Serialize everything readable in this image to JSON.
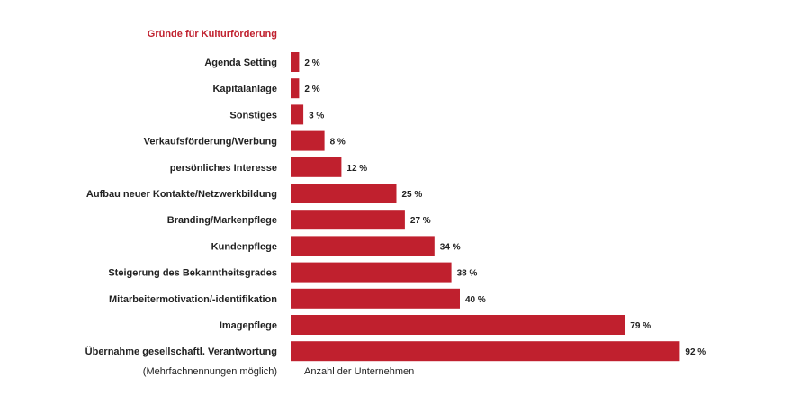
{
  "chart_data": {
    "type": "bar",
    "orientation": "horizontal",
    "title": "Gründe für Kulturförderung",
    "xlabel": "Anzahl der Unternehmen",
    "footnote": "(Mehrfachnennungen möglich)",
    "value_suffix": " %",
    "categories": [
      "Agenda Setting",
      "Kapitalanlage",
      "Sonstiges",
      "Verkaufsförderung/Werbung",
      "persönliches Interesse",
      "Aufbau neuer Kontakte/Netzwerkbildung",
      "Branding/Markenpflege",
      "Kundenpflege",
      "Steigerung des Bekanntheitsgrades",
      "Mitarbeitermotivation/-identifikation",
      "Imagepflege",
      "Übernahme gesellschaftl. Verantwortung"
    ],
    "values": [
      2,
      2,
      3,
      8,
      12,
      25,
      27,
      34,
      38,
      40,
      79,
      92
    ],
    "xlim": [
      0,
      100
    ],
    "grid": false,
    "legend": "none"
  },
  "colors": {
    "bar": "#c0202e",
    "title": "#c0202e",
    "text": "#222222"
  }
}
